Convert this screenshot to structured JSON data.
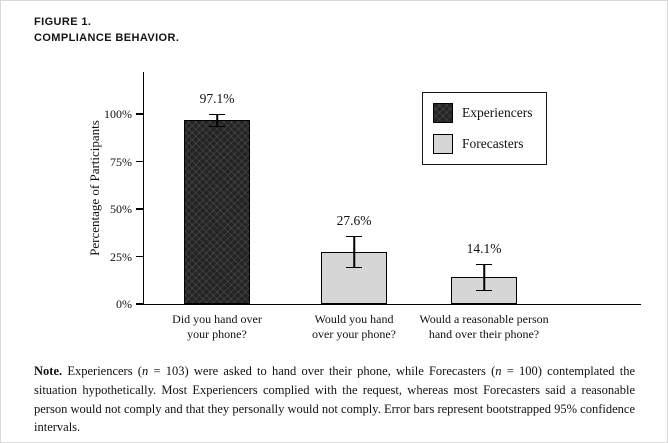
{
  "figure": {
    "label": "FIGURE 1.",
    "title": "COMPLIANCE BEHAVIOR."
  },
  "chart_data": {
    "type": "bar",
    "title": "Compliance Behavior",
    "ylabel": "Percentage of Participants",
    "ylim": [
      0,
      100
    ],
    "ytick_values": [
      0,
      25,
      50,
      75,
      100
    ],
    "ytick_labels": [
      "0%",
      "25%",
      "50%",
      "75%",
      "100%"
    ],
    "categories": [
      "Did you hand over your phone?",
      "Would you hand over your phone?",
      "Would a reasonable person hand over their phone?"
    ],
    "category_lines": [
      [
        "Did you hand over",
        "your phone?"
      ],
      [
        "Would you hand",
        "over your phone?"
      ],
      [
        "Would a reasonable person",
        "hand over their phone?"
      ]
    ],
    "values": [
      97.1,
      27.6,
      14.1
    ],
    "value_labels": [
      "97.1%",
      "27.6%",
      "14.1%"
    ],
    "error_bars_95ci": {
      "low": [
        93,
        19,
        7
      ],
      "high": [
        100,
        36,
        21
      ]
    },
    "bar_series": [
      0,
      1,
      1
    ],
    "legend": [
      {
        "label": "Experiencers",
        "color": "#242424",
        "pattern": "crosshatch"
      },
      {
        "label": "Forecasters",
        "color": "#d6d6d6",
        "pattern": "solid"
      }
    ],
    "legend_position": "top-right",
    "grid": false
  },
  "note": {
    "label": "Note.",
    "segments": [
      {
        "text": " Experiencers (",
        "italic": false
      },
      {
        "text": "n",
        "italic": true
      },
      {
        "text": " = 103) were asked to hand over their phone, while Forecasters (",
        "italic": false
      },
      {
        "text": "n",
        "italic": true
      },
      {
        "text": " = 100) contemplated the situation hypothetically. Most Experiencers complied with the request, whereas most Forecasters said a reasonable person would not comply and that they personally would not comply. Error bars represent bootstrapped 95% confidence intervals.",
        "italic": false
      }
    ]
  }
}
